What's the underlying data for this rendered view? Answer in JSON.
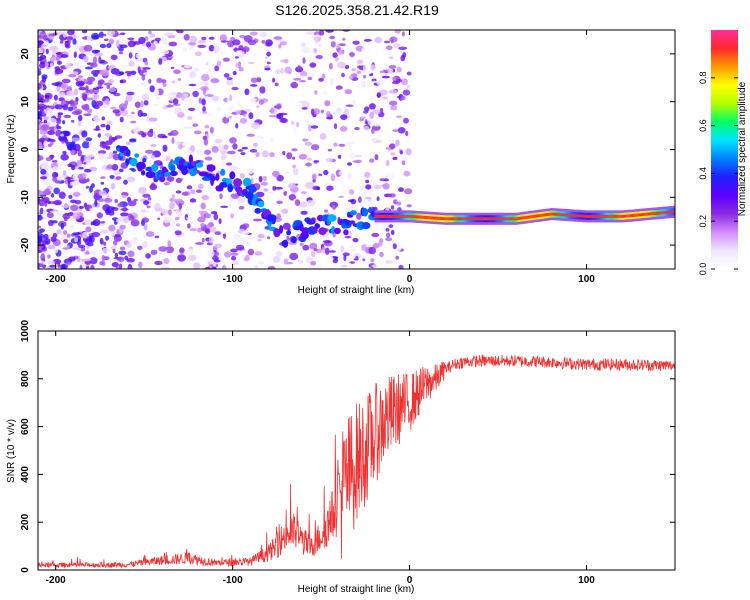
{
  "title": "S126.2025.358.21.42.R19",
  "chart_data": [
    {
      "type": "heatmap",
      "name": "spectrogram",
      "xlabel": "Height of straight line (km)",
      "ylabel": "Frequency (Hz)",
      "xlim": [
        -210,
        150
      ],
      "ylim": [
        -25,
        25
      ],
      "xticks": [
        -200,
        -100,
        0,
        100
      ],
      "yticks": [
        -20,
        -10,
        0,
        10,
        20
      ],
      "colorbar": {
        "label": "Normalized spectral amplitude",
        "range": [
          0,
          1
        ],
        "ticks": [
          "0.0",
          "0.2",
          "0.4",
          "0.6",
          "0.8"
        ],
        "tick_values": [
          0.0,
          0.2,
          0.4,
          0.6,
          0.8
        ],
        "colors": [
          "#ffffff",
          "#f0e6ff",
          "#d28cff",
          "#8a2be2",
          "#5a00ff",
          "#1f1fff",
          "#0080ff",
          "#00e5ff",
          "#00ff66",
          "#b4ff00",
          "#ffff00",
          "#ff9900",
          "#ff2a2a",
          "#ff2e9a"
        ]
      },
      "signal_track": {
        "x": [
          -160,
          -150,
          -140,
          -130,
          -120,
          -110,
          -100,
          -90,
          -80,
          -70,
          -60,
          -50,
          -40,
          -30,
          -20,
          -10,
          0,
          20,
          40,
          60,
          80,
          100,
          120,
          150
        ],
        "freq": [
          -1,
          -4,
          -5,
          -3,
          -4,
          -6,
          -7,
          -9,
          -15,
          -18,
          -17,
          -15,
          -16,
          -15,
          -14,
          -14,
          -14,
          -14.5,
          -14.5,
          -14.5,
          -13.5,
          -14,
          -14,
          -13
        ]
      }
    },
    {
      "type": "line",
      "name": "snr",
      "xlabel": "Height of straight line (km)",
      "ylabel": "SNR (10 * v/v)",
      "xlim": [
        -210,
        150
      ],
      "ylim": [
        0,
        1000
      ],
      "xticks": [
        -200,
        -100,
        0,
        100
      ],
      "yticks": [
        0,
        200,
        400,
        600,
        800,
        1000
      ],
      "color": "#ee3333",
      "envelope": {
        "x": [
          -210,
          -160,
          -140,
          -125,
          -110,
          -90,
          -80,
          -75,
          -70,
          -65,
          -60,
          -55,
          -50,
          -45,
          -40,
          -35,
          -30,
          -25,
          -20,
          -15,
          -10,
          -5,
          0,
          5,
          10,
          15,
          20,
          25,
          30,
          40,
          60,
          80,
          100,
          120,
          150
        ],
        "y": [
          20,
          22,
          40,
          50,
          30,
          35,
          70,
          100,
          150,
          160,
          120,
          90,
          150,
          200,
          300,
          380,
          450,
          500,
          560,
          620,
          650,
          680,
          700,
          740,
          780,
          800,
          840,
          860,
          870,
          875,
          875,
          870,
          860,
          860,
          855
        ]
      }
    }
  ]
}
